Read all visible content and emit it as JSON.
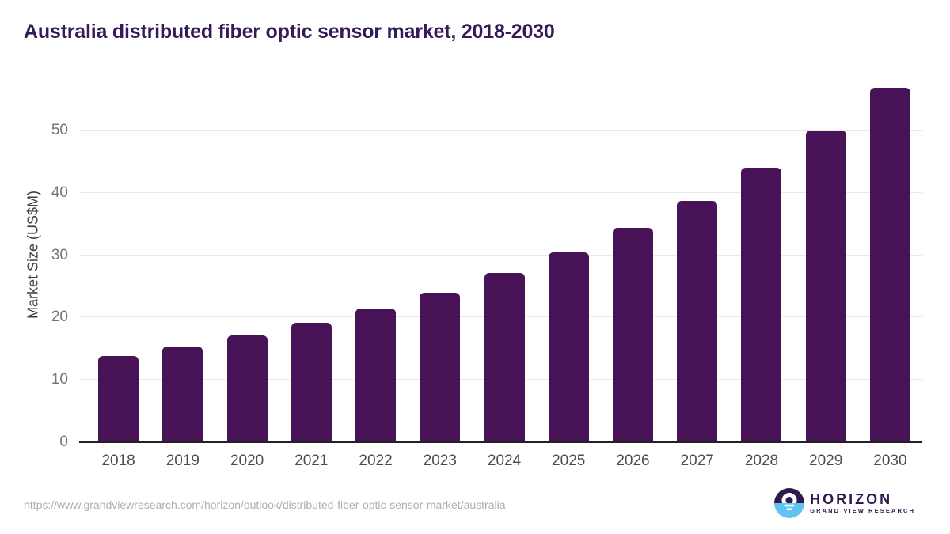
{
  "title": "Australia distributed fiber optic sensor market, 2018-2030",
  "chart_data": {
    "type": "bar",
    "title": "Australia distributed fiber optic sensor market, 2018-2030",
    "categories": [
      "2018",
      "2019",
      "2020",
      "2021",
      "2022",
      "2023",
      "2024",
      "2025",
      "2026",
      "2027",
      "2028",
      "2029",
      "2030"
    ],
    "values": [
      13.8,
      15.3,
      17.1,
      19.2,
      21.5,
      24.0,
      27.2,
      30.5,
      34.4,
      38.7,
      44.0,
      50.0,
      56.9
    ],
    "xlabel": "",
    "ylabel": "Market Size (US$M)",
    "ylim": [
      0,
      57
    ],
    "yticks": [
      0,
      10,
      20,
      30,
      40,
      50
    ],
    "grid": true,
    "legend": "none"
  },
  "footer": {
    "source_url": "https://www.grandviewresearch.com/horizon/outlook/distributed-fiber-optic-sensor-market/australia",
    "logo_name": "HORIZON",
    "logo_subtitle": "GRAND VIEW RESEARCH"
  },
  "colors": {
    "title_text": "#331a58",
    "bar_fill": "#471356",
    "axis_line": "#222222",
    "gridline": "#e8e8e8",
    "y_tick_label": "#757575",
    "x_tick_label": "#4d4d4d",
    "y_axis_title": "#3f3f3f",
    "url_text": "#aeaeae",
    "logo_purple": "#2e1a4e",
    "logo_blue": "#5fc4f1"
  }
}
